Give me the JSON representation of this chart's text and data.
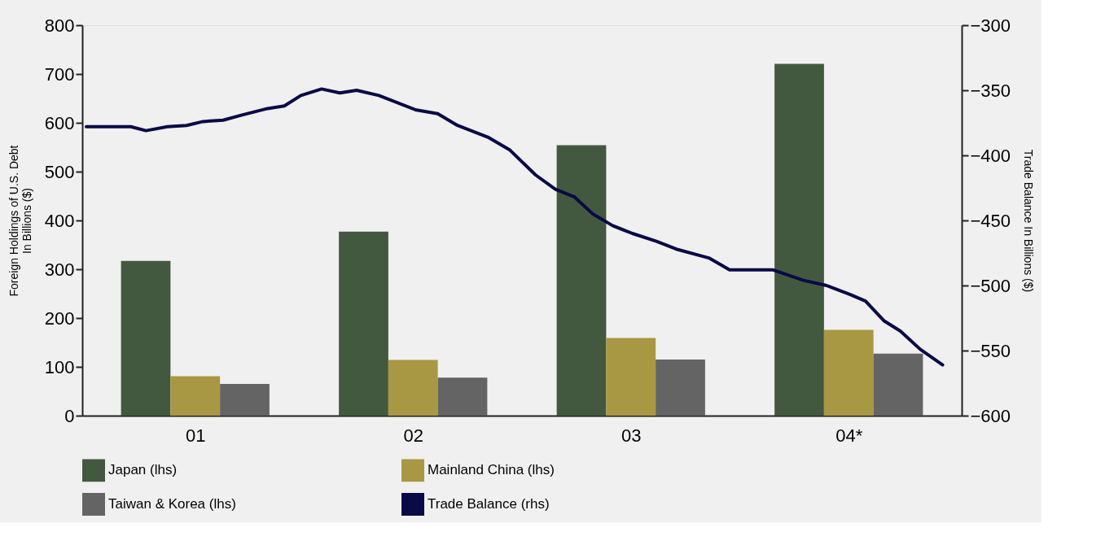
{
  "chart_data": {
    "type": "bar",
    "ylabel": "Foreign Holdings of U.S. Debt\nIn Billions ($)",
    "y2label": "Trade Balance In Billions ($)",
    "x": [
      1,
      2,
      3,
      4
    ],
    "xlim": [
      0.5,
      4.5
    ],
    "xticks": [
      {
        "value": 1,
        "label": "01"
      },
      {
        "value": 2,
        "label": "02"
      },
      {
        "value": 3,
        "label": "03"
      },
      {
        "value": 4,
        "label": "04*"
      }
    ],
    "series": [
      {
        "name": "Japan (lhs)",
        "color": "#43593f",
        "values": [
          317,
          377,
          554,
          721
        ]
      },
      {
        "name": "Mainland China (lhs)",
        "color": "#a99843",
        "values": [
          81,
          114,
          159,
          176
        ]
      },
      {
        "name": "Taiwan & Korea (lhs)",
        "color": "#646464",
        "values": [
          65,
          78,
          115,
          127
        ]
      },
      {
        "name": "Trade Balance (rhs)",
        "type": "line",
        "axis": "y2",
        "color": "#0a0a46",
        "x": [
          0.5,
          0.704,
          0.774,
          0.872,
          0.96,
          1.036,
          1.128,
          1.215,
          1.332,
          1.409,
          1.485,
          1.58,
          1.664,
          1.741,
          1.843,
          2.011,
          2.113,
          2.204,
          2.343,
          2.445,
          2.562,
          2.653,
          2.741,
          2.825,
          2.916,
          3.007,
          3.117,
          3.208,
          3.361,
          3.453,
          3.653,
          3.792,
          3.898,
          4.007,
          4.077,
          4.161,
          4.237,
          4.328,
          4.431
        ],
        "values": [
          -378,
          -378,
          -381,
          -378,
          -377,
          -374,
          -373,
          -369,
          -364,
          -362,
          -354,
          -349,
          -352,
          -350,
          -354,
          -365,
          -368,
          -377,
          -386,
          -396,
          -415,
          -426,
          -432,
          -445,
          -454,
          -460,
          -466,
          -472,
          -479,
          -488,
          -488,
          -496,
          -500,
          -507,
          -512,
          -527,
          -535,
          -549,
          -561
        ]
      }
    ],
    "ylim": [
      0,
      800
    ],
    "yticks": [
      0,
      100,
      200,
      300,
      400,
      500,
      600,
      700,
      800
    ],
    "y2lim": [
      -600,
      -300
    ],
    "y2ticks": [
      -600,
      -550,
      -500,
      -450,
      -400,
      -350,
      -300
    ],
    "grid": false,
    "legend": "bottom",
    "marker": "none",
    "line_style": "solid"
  }
}
